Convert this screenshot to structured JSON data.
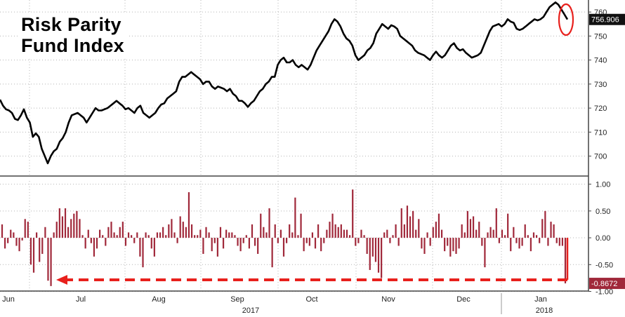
{
  "chart_data": [
    {
      "type": "line",
      "title_lines": [
        "Risk Parity",
        "Fund Index"
      ],
      "ylim": [
        692,
        765
      ],
      "ytick_labels": [
        "700",
        "710",
        "720",
        "730",
        "740",
        "750",
        "760"
      ],
      "last_value_label": "756.906",
      "grid": true,
      "series": [
        {
          "values": [
            723.5,
            721,
            719.5,
            719,
            718,
            715.5,
            715,
            717,
            719.5,
            716,
            714,
            708,
            709.5,
            708,
            703,
            700,
            697,
            700,
            702,
            703,
            706,
            707.5,
            710,
            714,
            717,
            717.5,
            718,
            717,
            716,
            714,
            716,
            718,
            720,
            719,
            719,
            719.5,
            720,
            721,
            722,
            723,
            722,
            721,
            719.5,
            720,
            719,
            718,
            720,
            721,
            718,
            717,
            716,
            717,
            718,
            720,
            721.5,
            722,
            724,
            725,
            726,
            727,
            731,
            733,
            733,
            734,
            735,
            734,
            733,
            732,
            730,
            731,
            731,
            729,
            728,
            729,
            728.5,
            728,
            727,
            728,
            726,
            725,
            723,
            723,
            722,
            720.5,
            722,
            723,
            725,
            727,
            728,
            730,
            731,
            733,
            733,
            738,
            740,
            741,
            739,
            739,
            740,
            738,
            737,
            738,
            737,
            736,
            738,
            741,
            744,
            746,
            748,
            750,
            752,
            755,
            757,
            756,
            754,
            751,
            749,
            748,
            746,
            742,
            740,
            741,
            742,
            744,
            745,
            747,
            751,
            753,
            755,
            754,
            753,
            754.5,
            754,
            753,
            750,
            749,
            748,
            747,
            746,
            744,
            743,
            742.5,
            742,
            741,
            740,
            742,
            743.5,
            742,
            741,
            742,
            744,
            746,
            747,
            745,
            744,
            744.5,
            743,
            742,
            741,
            741.5,
            742,
            743,
            746,
            749,
            752,
            754,
            754.5,
            755,
            754,
            755,
            757,
            756,
            755.5,
            753,
            752.5,
            753,
            754,
            755,
            756,
            757,
            756.5,
            757,
            758,
            760,
            762,
            763,
            764,
            763,
            761,
            759,
            756.9
          ]
        }
      ]
    },
    {
      "type": "bar",
      "ylim": [
        -0.98,
        1.06
      ],
      "ytick_labels": [
        "1.00",
        "0.50",
        "0.00",
        "-0.50",
        "-1.00"
      ],
      "last_value_label": "-0.8672",
      "grid": true,
      "series": [
        {
          "values": [
            0.25,
            -0.2,
            -0.1,
            0.15,
            0.1,
            -0.15,
            -0.25,
            -0.05,
            0.35,
            0.3,
            -0.5,
            -0.65,
            0.1,
            -0.45,
            -0.3,
            0.2,
            -0.8,
            -0.9,
            0.1,
            0.3,
            0.55,
            0.4,
            0.55,
            0.2,
            0.35,
            0.45,
            0.5,
            0.35,
            0.05,
            -0.2,
            0.15,
            -0.1,
            -0.35,
            -0.2,
            0.15,
            0.05,
            -0.15,
            0.2,
            0.3,
            0.1,
            0.05,
            0.2,
            0.3,
            -0.15,
            0.1,
            0.05,
            -0.1,
            0.1,
            -0.35,
            -0.55,
            0.1,
            0.05,
            -0.2,
            -0.35,
            0.1,
            0.1,
            0.2,
            0.05,
            0.25,
            0.35,
            0.1,
            -0.1,
            0.4,
            0.3,
            0.2,
            0.85,
            0.25,
            0.05,
            0.05,
            0.15,
            -0.3,
            0.2,
            0.1,
            -0.25,
            -0.1,
            -0.35,
            0.2,
            -0.2,
            0.15,
            0.1,
            0.1,
            0.05,
            -0.15,
            -0.25,
            -0.1,
            0.05,
            -0.2,
            0.25,
            -0.15,
            -0.3,
            0.45,
            0.2,
            0.1,
            0.55,
            -0.55,
            0.25,
            -0.1,
            0.15,
            -0.35,
            -0.1,
            0.25,
            0.1,
            0.75,
            0.05,
            0.45,
            -0.25,
            -0.1,
            -0.15,
            0.1,
            -0.2,
            0.25,
            -0.25,
            -0.1,
            0.15,
            0.3,
            0.45,
            0.25,
            0.2,
            0.25,
            0.15,
            0.15,
            0.05,
            0.9,
            -0.15,
            -0.1,
            0.15,
            0.05,
            -0.3,
            -0.6,
            -0.35,
            -0.45,
            -0.65,
            -0.75,
            0.1,
            0.15,
            -0.1,
            0.05,
            0.25,
            -0.15,
            0.55,
            0.25,
            0.6,
            0.4,
            0.5,
            0.15,
            0.35,
            -0.2,
            -0.3,
            0.1,
            -0.15,
            0.2,
            0.3,
            0.45,
            0.15,
            -0.25,
            -0.15,
            -0.35,
            -0.25,
            -0.3,
            -0.2,
            0.25,
            0.1,
            0.5,
            0.35,
            0.4,
            0.15,
            0.3,
            -0.15,
            -0.55,
            0.1,
            0.2,
            0.15,
            0.55,
            -0.1,
            0.15,
            0.05,
            0.45,
            -0.25,
            0.2,
            -0.1,
            -0.2,
            -0.15,
            0.25,
            0.05,
            -0.25,
            0.1,
            0.05,
            -0.1,
            0.35,
            0.5,
            -0.15,
            0.3,
            0.25,
            -0.1,
            -0.15,
            -0.15,
            -0.85
          ]
        }
      ],
      "annotation": "arrow marking the latest daily move at the -0.8672 level back to late June"
    }
  ],
  "x_axis": {
    "month_labels": [
      "Jun",
      "Jul",
      "Aug",
      "Sep",
      "Oct",
      "Nov",
      "Dec",
      "Jan"
    ],
    "year_labels": [
      "2017",
      "2018"
    ]
  },
  "colors": {
    "line": "#000000",
    "bars": "#a0283a",
    "grid": "#b4b4b4",
    "highlight": "#e8201c",
    "badge_text": "#ffffff"
  }
}
